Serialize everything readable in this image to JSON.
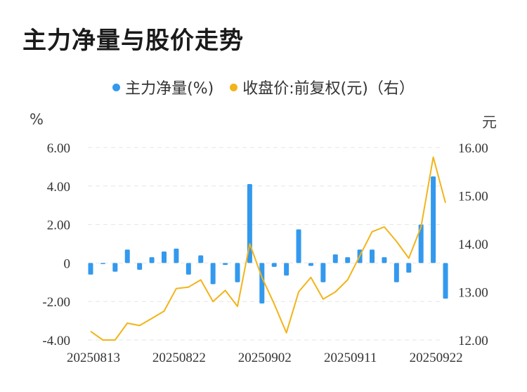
{
  "chart_data": {
    "type": "bar+line",
    "title": "主力净量与股价走势",
    "legend": [
      {
        "name": "主力净量(%)",
        "color": "#3399ee"
      },
      {
        "name": "收盘价:前复权(元)（右）",
        "color": "#f2b418"
      }
    ],
    "left_unit": "%",
    "right_unit": "元",
    "left_ticks": [
      "6.00",
      "4.00",
      "2.00",
      "0",
      "-2.00",
      "-4.00"
    ],
    "left_range": [
      -4,
      6
    ],
    "right_ticks": [
      "16.00",
      "15.00",
      "14.00",
      "13.00",
      "12.00"
    ],
    "right_range": [
      12,
      16
    ],
    "x_labels": [
      "20250813",
      "20250822",
      "20250902",
      "20250911",
      "20250922"
    ],
    "x_label_index": [
      0,
      7,
      14,
      21,
      28
    ],
    "grid": true,
    "series": [
      {
        "name": "主力净量(%)",
        "type": "bar",
        "axis": "left",
        "values": [
          -0.6,
          -0.05,
          -0.45,
          0.7,
          -0.35,
          0.3,
          0.6,
          0.75,
          -0.6,
          0.4,
          -1.1,
          -0.1,
          -1.0,
          4.1,
          -2.1,
          -0.2,
          -0.65,
          1.75,
          -0.15,
          -1.0,
          0.45,
          0.3,
          0.7,
          0.7,
          0.3,
          -1.0,
          -0.5,
          2.0,
          4.5,
          -1.85
        ]
      },
      {
        "name": "收盘价:前复权(元)（右）",
        "type": "line",
        "axis": "right",
        "values": [
          12.18,
          12.0,
          12.0,
          12.35,
          12.3,
          12.45,
          12.6,
          13.07,
          13.1,
          13.25,
          12.8,
          13.03,
          12.7,
          14.0,
          13.3,
          12.75,
          12.15,
          13.0,
          13.3,
          12.85,
          13.0,
          13.25,
          13.75,
          14.25,
          14.35,
          14.05,
          13.7,
          14.35,
          15.8,
          14.85
        ]
      }
    ]
  }
}
